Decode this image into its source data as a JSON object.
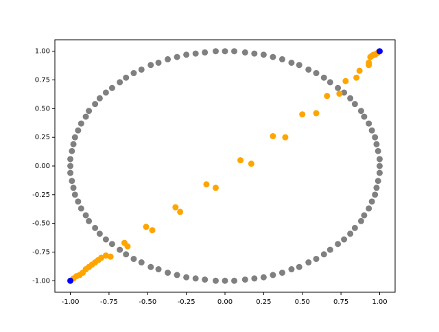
{
  "chart_data": {
    "type": "scatter",
    "xlim": [
      -1.1,
      1.1
    ],
    "ylim": [
      -1.1,
      1.1
    ],
    "xticks": [
      {
        "value": -1,
        "label": "-1.00"
      },
      {
        "value": -0.75,
        "label": "-0.75"
      },
      {
        "value": -0.5,
        "label": "-0.50"
      },
      {
        "value": -0.25,
        "label": "-0.25"
      },
      {
        "value": 0,
        "label": "0.00"
      },
      {
        "value": 0.25,
        "label": "0.25"
      },
      {
        "value": 0.5,
        "label": "0.50"
      },
      {
        "value": 0.75,
        "label": "0.75"
      },
      {
        "value": 1,
        "label": "1.00"
      }
    ],
    "yticks": [
      {
        "value": -1,
        "label": "-1.00"
      },
      {
        "value": -0.75,
        "label": "-0.75"
      },
      {
        "value": -0.5,
        "label": "-0.50"
      },
      {
        "value": -0.25,
        "label": "-0.25"
      },
      {
        "value": 0,
        "label": "0.00"
      },
      {
        "value": 0.25,
        "label": "0.25"
      },
      {
        "value": 0.5,
        "label": "0.50"
      },
      {
        "value": 0.75,
        "label": "0.75"
      },
      {
        "value": 1,
        "label": "1.00"
      }
    ],
    "series": [
      {
        "color": "#808080",
        "x": [
          1,
          1,
          0.99,
          0.98,
          0.97,
          0.95,
          0.93,
          0.9,
          0.88,
          0.84,
          0.81,
          0.77,
          0.73,
          0.68,
          0.64,
          0.59,
          0.54,
          0.48,
          0.43,
          0.37,
          0.31,
          0.25,
          0.19,
          0.13,
          0.06,
          0,
          -0.06,
          -0.13,
          -0.19,
          -0.25,
          -0.31,
          -0.37,
          -0.43,
          -0.48,
          -0.54,
          -0.59,
          -0.64,
          -0.68,
          -0.73,
          -0.77,
          -0.81,
          -0.84,
          -0.88,
          -0.9,
          -0.93,
          -0.95,
          -0.97,
          -0.98,
          -0.99,
          -1,
          -1,
          -1,
          -0.99,
          -0.98,
          -0.97,
          -0.95,
          -0.93,
          -0.9,
          -0.88,
          -0.84,
          -0.81,
          -0.77,
          -0.73,
          -0.68,
          -0.64,
          -0.59,
          -0.54,
          -0.48,
          -0.43,
          -0.37,
          -0.31,
          -0.25,
          -0.19,
          -0.13,
          -0.06,
          0,
          0.06,
          0.13,
          0.19,
          0.25,
          0.31,
          0.37,
          0.43,
          0.48,
          0.54,
          0.59,
          0.64,
          0.68,
          0.73,
          0.77,
          0.81,
          0.84,
          0.88,
          0.9,
          0.93,
          0.95,
          0.97,
          0.98,
          0.99,
          1
        ],
        "values": [
          0,
          0.06,
          0.13,
          0.19,
          0.25,
          0.31,
          0.37,
          0.43,
          0.48,
          0.54,
          0.59,
          0.64,
          0.68,
          0.73,
          0.77,
          0.81,
          0.84,
          0.88,
          0.9,
          0.93,
          0.95,
          0.97,
          0.98,
          0.99,
          1,
          1,
          1,
          0.99,
          0.98,
          0.97,
          0.95,
          0.93,
          0.9,
          0.88,
          0.84,
          0.81,
          0.77,
          0.73,
          0.68,
          0.64,
          0.59,
          0.54,
          0.48,
          0.43,
          0.37,
          0.31,
          0.25,
          0.19,
          0.13,
          0.06,
          0,
          -0.06,
          -0.13,
          -0.19,
          -0.25,
          -0.31,
          -0.37,
          -0.43,
          -0.48,
          -0.54,
          -0.59,
          -0.64,
          -0.68,
          -0.73,
          -0.77,
          -0.81,
          -0.84,
          -0.88,
          -0.9,
          -0.93,
          -0.95,
          -0.97,
          -0.98,
          -0.99,
          -1,
          -1,
          -1,
          -0.99,
          -0.98,
          -0.97,
          -0.95,
          -0.93,
          -0.9,
          -0.88,
          -0.84,
          -0.81,
          -0.77,
          -0.73,
          -0.68,
          -0.64,
          -0.59,
          -0.54,
          -0.48,
          -0.43,
          -0.37,
          -0.31,
          -0.25,
          -0.19,
          -0.13,
          -0.06
        ]
      },
      {
        "color": "#ffa500",
        "x": [
          0.99,
          0.98,
          0.97,
          0.96,
          0.95,
          0.94,
          0.93,
          0.93,
          0.87,
          0.85,
          0.78,
          0.74,
          0.66,
          0.59,
          0.5,
          0.39,
          0.31,
          0.17,
          0.1,
          -0.06,
          -0.12,
          -0.29,
          -0.32,
          -0.47,
          -0.51,
          -0.63,
          -0.65,
          -0.74,
          -0.77,
          -0.8,
          -0.82,
          -0.84,
          -0.86,
          -0.88,
          -0.9,
          -0.92,
          -0.94,
          -0.96,
          -0.98
        ],
        "values": [
          0.99,
          0.98,
          0.97,
          0.97,
          0.96,
          0.95,
          0.9,
          0.88,
          0.83,
          0.77,
          0.74,
          0.63,
          0.61,
          0.46,
          0.45,
          0.25,
          0.26,
          0.02,
          0.05,
          -0.19,
          -0.16,
          -0.4,
          -0.36,
          -0.56,
          -0.53,
          -0.7,
          -0.67,
          -0.79,
          -0.78,
          -0.8,
          -0.82,
          -0.84,
          -0.86,
          -0.88,
          -0.9,
          -0.93,
          -0.95,
          -0.96,
          -0.98
        ]
      },
      {
        "color": "#0000ff",
        "x": [
          -1,
          1
        ],
        "values": [
          -1,
          1
        ]
      }
    ]
  }
}
